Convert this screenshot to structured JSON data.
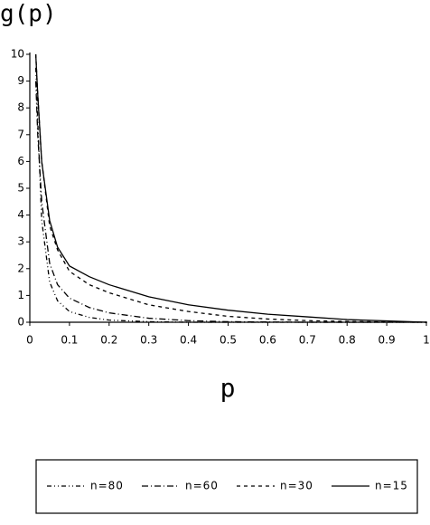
{
  "chart_data": {
    "type": "line",
    "y_label": "g(p)",
    "x_label": "p",
    "x": [
      0.015,
      0.02,
      0.03,
      0.05,
      0.07,
      0.1,
      0.15,
      0.2,
      0.3,
      0.4,
      0.5,
      0.6,
      0.7,
      0.8,
      0.9,
      1.0
    ],
    "series": [
      {
        "name": "n=80",
        "color": "#000000",
        "dash": "5 3 1 3 1 3",
        "values": [
          9.5,
          7.5,
          3.8,
          1.5,
          0.8,
          0.4,
          0.18,
          0.08,
          0.02,
          0,
          0,
          0,
          0,
          0,
          0,
          0
        ]
      },
      {
        "name": "n=60",
        "color": "#000000",
        "dash": "7 3 1 3",
        "values": [
          9,
          7,
          4.5,
          2.2,
          1.4,
          0.9,
          0.55,
          0.35,
          0.15,
          0.06,
          0.02,
          0.01,
          0,
          0,
          0,
          0
        ]
      },
      {
        "name": "n=30",
        "color": "#000000",
        "dash": "4 4",
        "values": [
          10,
          8.5,
          6,
          3.6,
          2.7,
          1.9,
          1.4,
          1.1,
          0.65,
          0.4,
          0.22,
          0.12,
          0.06,
          0.03,
          0.01,
          0
        ]
      },
      {
        "name": "n=15",
        "color": "#000000",
        "dash": "none",
        "values": [
          10,
          8.5,
          6,
          3.8,
          2.8,
          2.1,
          1.7,
          1.4,
          0.95,
          0.65,
          0.45,
          0.3,
          0.2,
          0.1,
          0.05,
          0
        ]
      }
    ],
    "xlim": [
      0,
      1
    ],
    "ylim": [
      0,
      10
    ],
    "xticks": [
      0,
      0.1,
      0.2,
      0.3,
      0.4,
      0.5,
      0.6,
      0.7,
      0.8,
      0.9,
      1
    ],
    "yticks": [
      0,
      1,
      2,
      3,
      4,
      5,
      6,
      7,
      8,
      9,
      10
    ],
    "grid": false,
    "legend": "bottom"
  }
}
